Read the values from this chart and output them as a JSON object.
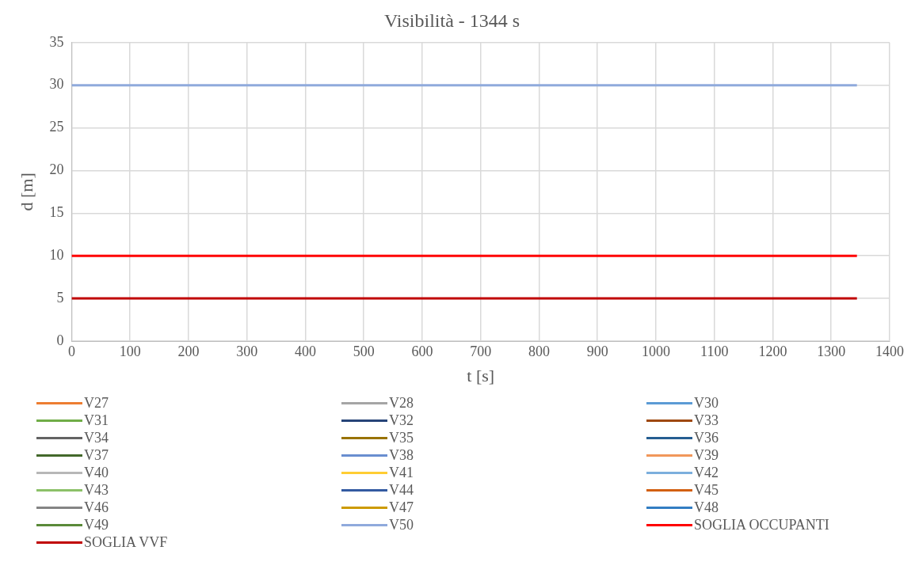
{
  "chart_data": {
    "type": "line",
    "title": "Visibilità - 1344 s",
    "xlabel": "t [s]",
    "ylabel": "d [m]",
    "xlim": [
      0,
      1400
    ],
    "xticks": [
      0,
      100,
      200,
      300,
      400,
      500,
      600,
      700,
      800,
      900,
      1000,
      1100,
      1200,
      1300,
      1400
    ],
    "ylim": [
      0,
      35
    ],
    "yticks": [
      0,
      5,
      10,
      15,
      20,
      25,
      30,
      35
    ],
    "grid": true,
    "legend": "bottom",
    "marker": "none",
    "line_style": "solid",
    "x": [
      0,
      1344
    ],
    "series": [
      {
        "name": "V27",
        "color": "#ed7d31",
        "values": [
          null,
          null
        ]
      },
      {
        "name": "V28",
        "color": "#a5a5a5",
        "values": [
          null,
          null
        ]
      },
      {
        "name": "V30",
        "color": "#5b9bd5",
        "values": [
          null,
          null
        ]
      },
      {
        "name": "V31",
        "color": "#70ad47",
        "values": [
          null,
          null
        ]
      },
      {
        "name": "V32",
        "color": "#264478",
        "values": [
          null,
          null
        ]
      },
      {
        "name": "V33",
        "color": "#9e480e",
        "values": [
          null,
          null
        ]
      },
      {
        "name": "V34",
        "color": "#636363",
        "values": [
          null,
          null
        ]
      },
      {
        "name": "V35",
        "color": "#997300",
        "values": [
          null,
          null
        ]
      },
      {
        "name": "V36",
        "color": "#255e91",
        "values": [
          null,
          null
        ]
      },
      {
        "name": "V37",
        "color": "#43682b",
        "values": [
          null,
          null
        ]
      },
      {
        "name": "V38",
        "color": "#698ed0",
        "values": [
          null,
          null
        ]
      },
      {
        "name": "V39",
        "color": "#f1975a",
        "values": [
          null,
          null
        ]
      },
      {
        "name": "V40",
        "color": "#b7b7b7",
        "values": [
          null,
          null
        ]
      },
      {
        "name": "V41",
        "color": "#ffcd33",
        "values": [
          null,
          null
        ]
      },
      {
        "name": "V42",
        "color": "#7cafdd",
        "values": [
          null,
          null
        ]
      },
      {
        "name": "V43",
        "color": "#8cc168",
        "values": [
          null,
          null
        ]
      },
      {
        "name": "V44",
        "color": "#335aa1",
        "values": [
          null,
          null
        ]
      },
      {
        "name": "V45",
        "color": "#d26012",
        "values": [
          null,
          null
        ]
      },
      {
        "name": "V46",
        "color": "#848484",
        "values": [
          null,
          null
        ]
      },
      {
        "name": "V47",
        "color": "#cc9a00",
        "values": [
          null,
          null
        ]
      },
      {
        "name": "V48",
        "color": "#327dc2",
        "values": [
          null,
          null
        ]
      },
      {
        "name": "V49",
        "color": "#5a8a39",
        "values": [
          null,
          null
        ]
      },
      {
        "name": "V50",
        "color": "#8faadc",
        "values": [
          30,
          30
        ]
      },
      {
        "name": "SOGLIA OCCUPANTI",
        "color": "#ff0000",
        "values": [
          10,
          10
        ]
      },
      {
        "name": "SOGLIA VVF",
        "color": "#c00000",
        "values": [
          5,
          5
        ]
      }
    ]
  }
}
